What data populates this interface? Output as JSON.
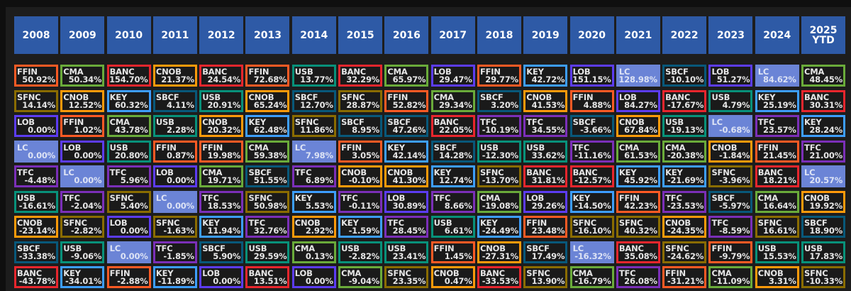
{
  "colors": {
    "FFIN": "#ff5a24",
    "CMA": "#6aab3a",
    "BANC": "#e8262d",
    "CNOB": "#ff9a0a",
    "SFNC": "#8a6c00",
    "KEY": "#3d9eff",
    "SBCF": "#08587a",
    "LOB": "#5c3cf2",
    "USB": "#08917a",
    "TFC": "#7b2fb8",
    "LC": "#6b84d6",
    "header": "#2e5aa6"
  },
  "columns": [
    {
      "year": "2008",
      "entries": [
        [
          "FFIN",
          "50.92%"
        ],
        [
          "SFNC",
          "14.14%"
        ],
        [
          "LOB",
          "0.00%"
        ],
        [
          "LC",
          "0.00%"
        ],
        [
          "TFC",
          "-4.48%"
        ],
        [
          "USB",
          "-16.61%"
        ],
        [
          "CNOB",
          "-23.14%"
        ],
        [
          "SBCF",
          "-33.38%"
        ],
        [
          "BANC",
          "-43.78%"
        ]
      ]
    },
    {
      "year": "2009",
      "entries": [
        [
          "CMA",
          "50.34%"
        ],
        [
          "CNOB",
          "12.52%"
        ],
        [
          "FFIN",
          "1.02%"
        ],
        [
          "LOB",
          "0.00%"
        ],
        [
          "LC",
          "0.00%"
        ],
        [
          "TFC",
          "-2.04%"
        ],
        [
          "SFNC",
          "-2.82%"
        ],
        [
          "USB",
          "-9.06%"
        ],
        [
          "KEY",
          "-34.01%"
        ]
      ]
    },
    {
      "year": "2010",
      "entries": [
        [
          "BANC",
          "154.70%"
        ],
        [
          "KEY",
          "60.32%"
        ],
        [
          "CMA",
          "43.78%"
        ],
        [
          "USB",
          "20.80%"
        ],
        [
          "TFC",
          "5.96%"
        ],
        [
          "SFNC",
          "5.40%"
        ],
        [
          "LOB",
          "0.00%"
        ],
        [
          "LC",
          "0.00%"
        ],
        [
          "FFIN",
          "-2.88%"
        ]
      ]
    },
    {
      "year": "2011",
      "entries": [
        [
          "CNOB",
          "21.37%"
        ],
        [
          "SBCF",
          "4.11%"
        ],
        [
          "USB",
          "2.28%"
        ],
        [
          "FFIN",
          "0.87%"
        ],
        [
          "LOB",
          "0.00%"
        ],
        [
          "LC",
          "0.00%"
        ],
        [
          "SFNC",
          "-1.63%"
        ],
        [
          "TFC",
          "-1.85%"
        ],
        [
          "KEY",
          "-11.89%"
        ]
      ]
    },
    {
      "year": "2012",
      "entries": [
        [
          "BANC",
          "24.54%"
        ],
        [
          "USB",
          "20.91%"
        ],
        [
          "CNOB",
          "20.32%"
        ],
        [
          "FFIN",
          "19.98%"
        ],
        [
          "CMA",
          "19.71%"
        ],
        [
          "TFC",
          "18.53%"
        ],
        [
          "KEY",
          "11.94%"
        ],
        [
          "SBCF",
          "5.90%"
        ],
        [
          "LOB",
          "0.00%"
        ]
      ]
    },
    {
      "year": "2013",
      "entries": [
        [
          "FFIN",
          "72.68%"
        ],
        [
          "CNOB",
          "65.24%"
        ],
        [
          "KEY",
          "62.48%"
        ],
        [
          "CMA",
          "59.38%"
        ],
        [
          "SBCF",
          "51.55%"
        ],
        [
          "SFNC",
          "50.98%"
        ],
        [
          "TFC",
          "32.76%"
        ],
        [
          "USB",
          "29.59%"
        ],
        [
          "BANC",
          "13.51%"
        ]
      ]
    },
    {
      "year": "2014",
      "entries": [
        [
          "USB",
          "13.77%"
        ],
        [
          "SBCF",
          "12.70%"
        ],
        [
          "SFNC",
          "11.86%"
        ],
        [
          "LC",
          "7.98%"
        ],
        [
          "TFC",
          "6.89%"
        ],
        [
          "KEY",
          "5.53%"
        ],
        [
          "CNOB",
          "2.92%"
        ],
        [
          "CMA",
          "0.13%"
        ],
        [
          "LOB",
          "0.00%"
        ]
      ]
    },
    {
      "year": "2015",
      "entries": [
        [
          "BANC",
          "32.29%"
        ],
        [
          "SFNC",
          "28.87%"
        ],
        [
          "SBCF",
          "8.95%"
        ],
        [
          "FFIN",
          "3.05%"
        ],
        [
          "CNOB",
          "-0.10%"
        ],
        [
          "TFC",
          "-0.11%"
        ],
        [
          "KEY",
          "-1.59%"
        ],
        [
          "USB",
          "-2.82%"
        ],
        [
          "CMA",
          "-9.04%"
        ]
      ]
    },
    {
      "year": "2016",
      "entries": [
        [
          "CMA",
          "65.97%"
        ],
        [
          "FFIN",
          "52.82%"
        ],
        [
          "SBCF",
          "47.26%"
        ],
        [
          "KEY",
          "42.14%"
        ],
        [
          "CNOB",
          "41.30%"
        ],
        [
          "LOB",
          "30.89%"
        ],
        [
          "TFC",
          "28.45%"
        ],
        [
          "USB",
          "23.41%"
        ],
        [
          "SFNC",
          "23.35%"
        ]
      ]
    },
    {
      "year": "2017",
      "entries": [
        [
          "LOB",
          "29.47%"
        ],
        [
          "CMA",
          "29.34%"
        ],
        [
          "BANC",
          "22.05%"
        ],
        [
          "SBCF",
          "14.28%"
        ],
        [
          "KEY",
          "12.74%"
        ],
        [
          "TFC",
          "8.66%"
        ],
        [
          "USB",
          "6.61%"
        ],
        [
          "FFIN",
          "1.45%"
        ],
        [
          "CNOB",
          "0.47%"
        ]
      ]
    },
    {
      "year": "2018",
      "entries": [
        [
          "FFIN",
          "29.77%"
        ],
        [
          "SBCF",
          "3.20%"
        ],
        [
          "TFC",
          "-10.19%"
        ],
        [
          "USB",
          "-12.30%"
        ],
        [
          "SFNC",
          "-13.70%"
        ],
        [
          "CMA",
          "-19.08%"
        ],
        [
          "KEY",
          "-24.49%"
        ],
        [
          "CNOB",
          "-27.31%"
        ],
        [
          "BANC",
          "-33.53%"
        ]
      ]
    },
    {
      "year": "2019",
      "entries": [
        [
          "KEY",
          "42.72%"
        ],
        [
          "CNOB",
          "41.53%"
        ],
        [
          "TFC",
          "34.55%"
        ],
        [
          "USB",
          "33.62%"
        ],
        [
          "BANC",
          "31.81%"
        ],
        [
          "LOB",
          "29.26%"
        ],
        [
          "FFIN",
          "23.48%"
        ],
        [
          "SBCF",
          "17.49%"
        ],
        [
          "SFNC",
          "13.90%"
        ]
      ]
    },
    {
      "year": "2020",
      "entries": [
        [
          "LOB",
          "151.15%"
        ],
        [
          "FFIN",
          "4.88%"
        ],
        [
          "SBCF",
          "-3.66%"
        ],
        [
          "TFC",
          "-11.16%"
        ],
        [
          "BANC",
          "-12.57%"
        ],
        [
          "KEY",
          "-14.50%"
        ],
        [
          "SFNC",
          "-16.10%"
        ],
        [
          "LC",
          "-16.32%"
        ],
        [
          "CMA",
          "-16.79%"
        ]
      ]
    },
    {
      "year": "2021",
      "entries": [
        [
          "LC",
          "128.98%"
        ],
        [
          "LOB",
          "84.27%"
        ],
        [
          "CNOB",
          "67.84%"
        ],
        [
          "CMA",
          "61.53%"
        ],
        [
          "KEY",
          "45.92%"
        ],
        [
          "FFIN",
          "42.23%"
        ],
        [
          "SFNC",
          "40.32%"
        ],
        [
          "BANC",
          "35.08%"
        ],
        [
          "TFC",
          "26.08%"
        ]
      ]
    },
    {
      "year": "2022",
      "entries": [
        [
          "SBCF",
          "-10.10%"
        ],
        [
          "BANC",
          "-17.67%"
        ],
        [
          "USB",
          "-19.13%"
        ],
        [
          "CMA",
          "-20.38%"
        ],
        [
          "KEY",
          "-21.69%"
        ],
        [
          "TFC",
          "-23.53%"
        ],
        [
          "CNOB",
          "-24.35%"
        ],
        [
          "SFNC",
          "-24.62%"
        ],
        [
          "FFIN",
          "-31.21%"
        ]
      ]
    },
    {
      "year": "2023",
      "entries": [
        [
          "LOB",
          "51.27%"
        ],
        [
          "USB",
          "4.79%"
        ],
        [
          "LC",
          "-0.68%"
        ],
        [
          "CNOB",
          "-1.84%"
        ],
        [
          "SFNC",
          "-3.96%"
        ],
        [
          "SBCF",
          "-5.97%"
        ],
        [
          "TFC",
          "-8.59%"
        ],
        [
          "FFIN",
          "-9.79%"
        ],
        [
          "CMA",
          "-11.09%"
        ]
      ]
    },
    {
      "year": "2024",
      "entries": [
        [
          "LC",
          "84.62%"
        ],
        [
          "KEY",
          "25.19%"
        ],
        [
          "TFC",
          "23.57%"
        ],
        [
          "FFIN",
          "21.45%"
        ],
        [
          "BANC",
          "18.21%"
        ],
        [
          "CMA",
          "16.64%"
        ],
        [
          "SFNC",
          "16.61%"
        ],
        [
          "USB",
          "15.53%"
        ],
        [
          "CNOB",
          "3.31%"
        ]
      ]
    },
    {
      "year": "2025\nYTD",
      "entries": [
        [
          "CMA",
          "48.45%"
        ],
        [
          "BANC",
          "30.31%"
        ],
        [
          "KEY",
          "28.24%"
        ],
        [
          "TFC",
          "21.00%"
        ],
        [
          "LC",
          "20.57%"
        ],
        [
          "CNOB",
          "19.92%"
        ],
        [
          "SBCF",
          "18.90%"
        ],
        [
          "USB",
          "17.83%"
        ],
        [
          "SFNC",
          "-10.33%"
        ]
      ]
    }
  ]
}
